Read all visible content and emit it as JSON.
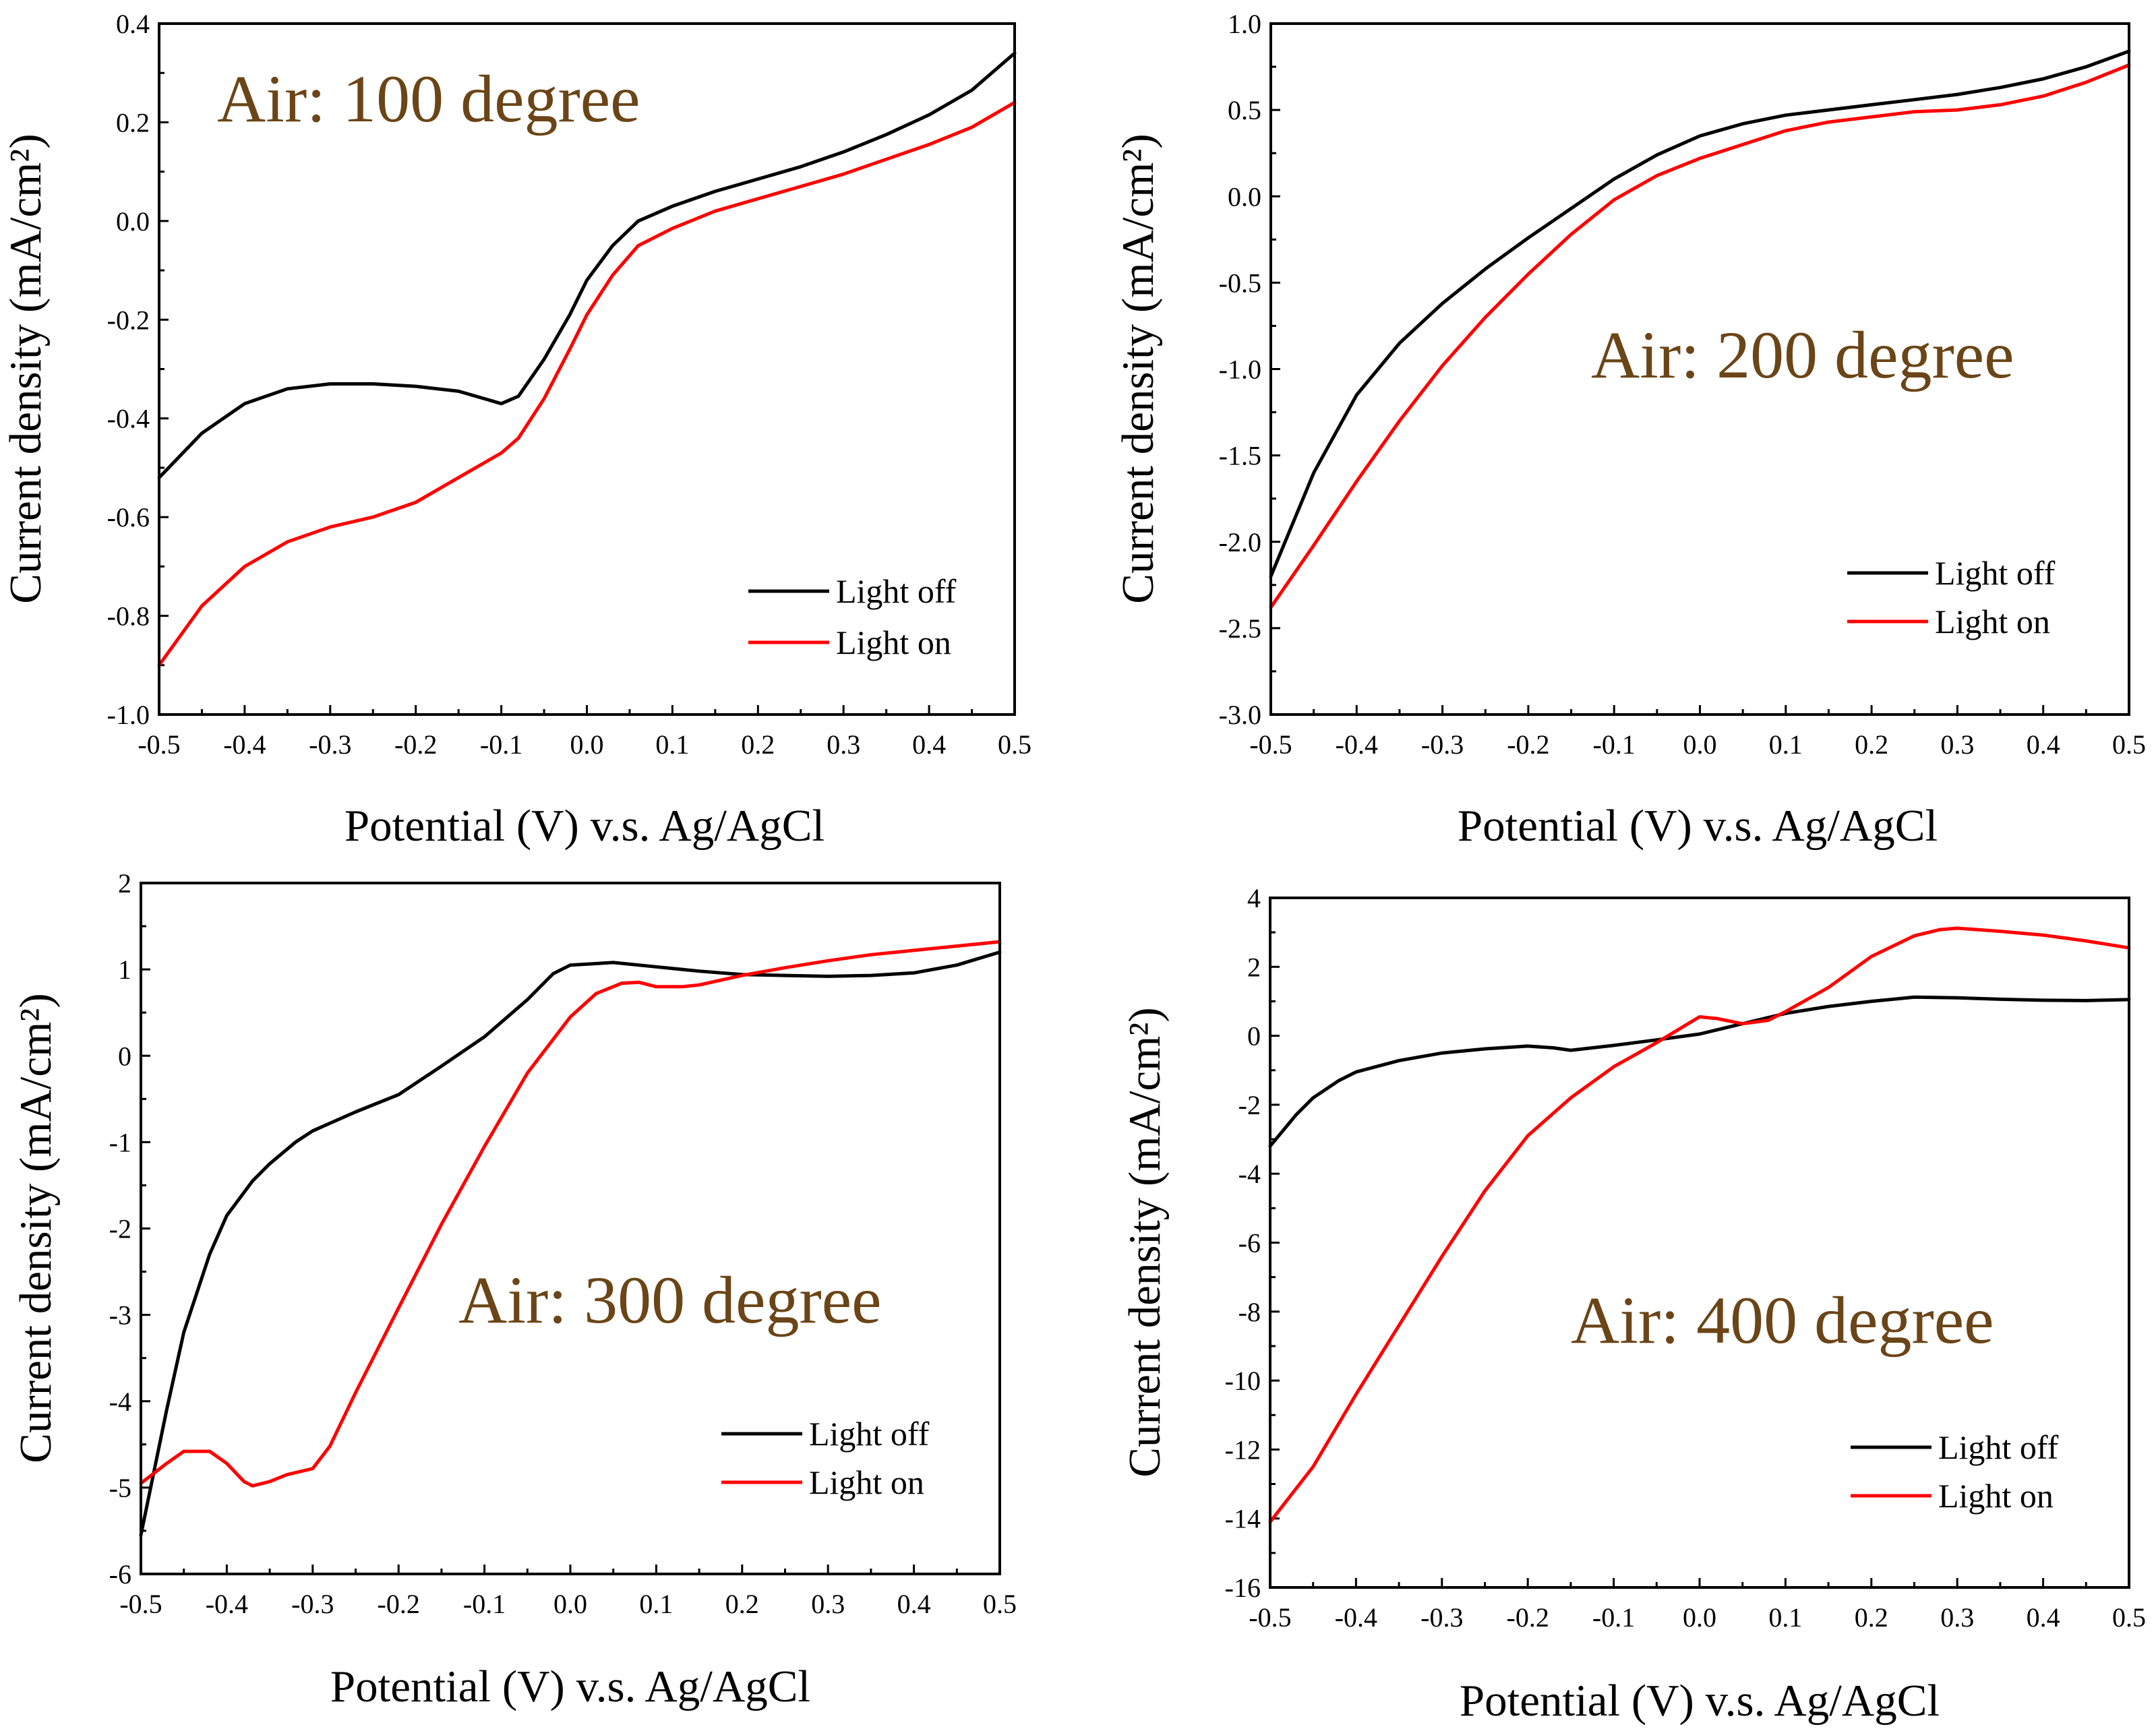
{
  "colors": {
    "light_off": "#000000",
    "light_on": "#ff0000",
    "title": "#6b4517"
  },
  "chart_data": [
    {
      "type": "line",
      "title": "Air: 100 degree",
      "xlabel": "Potential (V) v.s. Ag/AgCl",
      "ylabel": "Current density (mA/cm²)",
      "xlim": [
        -0.5,
        0.5
      ],
      "ylim": [
        -1.0,
        0.4
      ],
      "xticks": [
        -0.5,
        -0.4,
        -0.3,
        -0.2,
        -0.1,
        0.0,
        0.1,
        0.2,
        0.3,
        0.4,
        0.5
      ],
      "xtick_labels": [
        "-0.5",
        "-0.4",
        "-0.3",
        "-0.2",
        "-0.1",
        "0.0",
        "0.1",
        "0.2",
        "0.3",
        "0.4",
        "0.5"
      ],
      "yticks": [
        -1.0,
        -0.8,
        -0.6,
        -0.4,
        -0.2,
        0.0,
        0.2,
        0.4
      ],
      "ytick_labels": [
        "-1.0",
        "-0.8",
        "-0.6",
        "-0.4",
        "-0.2",
        "0.0",
        "0.2",
        "0.4"
      ],
      "legend_position": "bottom-right",
      "series": [
        {
          "name": "Light off",
          "color": "#000000",
          "x": [
            -0.5,
            -0.45,
            -0.4,
            -0.35,
            -0.3,
            -0.25,
            -0.2,
            -0.15,
            -0.12,
            -0.1,
            -0.08,
            -0.05,
            -0.02,
            0.0,
            0.03,
            0.06,
            0.1,
            0.15,
            0.2,
            0.25,
            0.3,
            0.35,
            0.4,
            0.45,
            0.5
          ],
          "y": [
            -0.52,
            -0.43,
            -0.37,
            -0.34,
            -0.33,
            -0.33,
            -0.335,
            -0.345,
            -0.36,
            -0.37,
            -0.355,
            -0.28,
            -0.19,
            -0.12,
            -0.05,
            0.0,
            0.03,
            0.06,
            0.085,
            0.11,
            0.14,
            0.175,
            0.215,
            0.265,
            0.34
          ]
        },
        {
          "name": "Light on",
          "color": "#ff0000",
          "x": [
            -0.5,
            -0.45,
            -0.4,
            -0.35,
            -0.3,
            -0.25,
            -0.2,
            -0.15,
            -0.1,
            -0.08,
            -0.05,
            -0.02,
            0.0,
            0.03,
            0.06,
            0.1,
            0.15,
            0.2,
            0.25,
            0.3,
            0.35,
            0.4,
            0.45,
            0.5
          ],
          "y": [
            -0.9,
            -0.78,
            -0.7,
            -0.65,
            -0.62,
            -0.6,
            -0.57,
            -0.52,
            -0.47,
            -0.44,
            -0.36,
            -0.26,
            -0.19,
            -0.11,
            -0.05,
            -0.015,
            0.02,
            0.045,
            0.07,
            0.095,
            0.125,
            0.155,
            0.19,
            0.24
          ]
        }
      ]
    },
    {
      "type": "line",
      "title": "Air: 200 degree",
      "xlabel": "Potential (V) v.s. Ag/AgCl",
      "ylabel": "Current density (mA/cm²)",
      "xlim": [
        -0.5,
        0.5
      ],
      "ylim": [
        -3.0,
        1.0
      ],
      "xticks": [
        -0.5,
        -0.4,
        -0.3,
        -0.2,
        -0.1,
        0.0,
        0.1,
        0.2,
        0.3,
        0.4,
        0.5
      ],
      "xtick_labels": [
        "-0.5",
        "-0.4",
        "-0.3",
        "-0.2",
        "-0.1",
        "0.0",
        "0.1",
        "0.2",
        "0.3",
        "0.4",
        "0.5"
      ],
      "yticks": [
        -3.0,
        -2.5,
        -2.0,
        -1.5,
        -1.0,
        -0.5,
        0.0,
        0.5,
        1.0
      ],
      "ytick_labels": [
        "-3.0",
        "-2.5",
        "-2.0",
        "-1.5",
        "-1.0",
        "-0.5",
        "0.0",
        "0.5",
        "1.0"
      ],
      "legend_position": "bottom-right",
      "series": [
        {
          "name": "Light off",
          "color": "#000000",
          "x": [
            -0.5,
            -0.45,
            -0.4,
            -0.35,
            -0.3,
            -0.25,
            -0.2,
            -0.15,
            -0.1,
            -0.05,
            0.0,
            0.05,
            0.1,
            0.15,
            0.2,
            0.25,
            0.3,
            0.35,
            0.4,
            0.45,
            0.5
          ],
          "y": [
            -2.2,
            -1.6,
            -1.15,
            -0.85,
            -0.62,
            -0.42,
            -0.24,
            -0.07,
            0.1,
            0.24,
            0.35,
            0.42,
            0.47,
            0.5,
            0.53,
            0.56,
            0.59,
            0.63,
            0.68,
            0.75,
            0.84
          ]
        },
        {
          "name": "Light on",
          "color": "#ff0000",
          "x": [
            -0.5,
            -0.45,
            -0.4,
            -0.35,
            -0.3,
            -0.25,
            -0.2,
            -0.15,
            -0.1,
            -0.05,
            0.0,
            0.05,
            0.1,
            0.15,
            0.2,
            0.25,
            0.3,
            0.35,
            0.4,
            0.45,
            0.5
          ],
          "y": [
            -2.38,
            -2.02,
            -1.65,
            -1.3,
            -0.98,
            -0.7,
            -0.45,
            -0.22,
            -0.02,
            0.12,
            0.22,
            0.3,
            0.38,
            0.43,
            0.46,
            0.49,
            0.5,
            0.53,
            0.58,
            0.66,
            0.76
          ]
        }
      ]
    },
    {
      "type": "line",
      "title": "Air: 300 degree",
      "xlabel": "Potential (V) v.s. Ag/AgCl",
      "ylabel": "Current density (mA/cm²)",
      "xlim": [
        -0.5,
        0.5
      ],
      "ylim": [
        -6,
        2
      ],
      "xticks": [
        -0.5,
        -0.4,
        -0.3,
        -0.2,
        -0.1,
        0.0,
        0.1,
        0.2,
        0.3,
        0.4,
        0.5
      ],
      "xtick_labels": [
        "-0.5",
        "-0.4",
        "-0.3",
        "-0.2",
        "-0.1",
        "0.0",
        "0.1",
        "0.2",
        "0.3",
        "0.4",
        "0.5"
      ],
      "yticks": [
        -6,
        -5,
        -4,
        -3,
        -2,
        -1,
        0,
        1,
        2
      ],
      "ytick_labels": [
        "-6",
        "-5",
        "-4",
        "-3",
        "-2",
        "-1",
        "0",
        "1",
        "2"
      ],
      "legend_position": "bottom-right",
      "series": [
        {
          "name": "Light off",
          "color": "#000000",
          "x": [
            -0.5,
            -0.47,
            -0.45,
            -0.42,
            -0.4,
            -0.37,
            -0.35,
            -0.32,
            -0.3,
            -0.25,
            -0.2,
            -0.15,
            -0.1,
            -0.05,
            -0.02,
            0.0,
            0.05,
            0.1,
            0.15,
            0.2,
            0.25,
            0.3,
            0.35,
            0.4,
            0.45,
            0.5
          ],
          "y": [
            -5.55,
            -4.1,
            -3.2,
            -2.3,
            -1.85,
            -1.45,
            -1.25,
            -1.0,
            -0.87,
            -0.65,
            -0.45,
            -0.12,
            0.22,
            0.65,
            0.95,
            1.05,
            1.08,
            1.03,
            0.98,
            0.94,
            0.93,
            0.92,
            0.93,
            0.96,
            1.05,
            1.2
          ]
        },
        {
          "name": "Light on",
          "color": "#ff0000",
          "x": [
            -0.5,
            -0.47,
            -0.45,
            -0.42,
            -0.4,
            -0.38,
            -0.37,
            -0.35,
            -0.33,
            -0.3,
            -0.28,
            -0.25,
            -0.2,
            -0.15,
            -0.1,
            -0.05,
            0.0,
            0.03,
            0.06,
            0.08,
            0.1,
            0.13,
            0.15,
            0.2,
            0.25,
            0.3,
            0.35,
            0.4,
            0.45,
            0.5
          ],
          "y": [
            -4.95,
            -4.72,
            -4.58,
            -4.58,
            -4.72,
            -4.93,
            -4.98,
            -4.93,
            -4.85,
            -4.78,
            -4.52,
            -3.9,
            -2.92,
            -1.95,
            -1.05,
            -0.2,
            0.45,
            0.72,
            0.84,
            0.85,
            0.8,
            0.8,
            0.82,
            0.93,
            1.02,
            1.1,
            1.17,
            1.22,
            1.27,
            1.32
          ]
        }
      ]
    },
    {
      "type": "line",
      "title": "Air: 400 degree",
      "xlabel": "Potential (V) v.s. Ag/AgCl",
      "ylabel": "Current density (mA/cm²)",
      "xlim": [
        -0.5,
        0.5
      ],
      "ylim": [
        -16,
        4
      ],
      "xticks": [
        -0.5,
        -0.4,
        -0.3,
        -0.2,
        -0.1,
        0.0,
        0.1,
        0.2,
        0.3,
        0.4,
        0.5
      ],
      "xtick_labels": [
        "-0.5",
        "-0.4",
        "-0.3",
        "-0.2",
        "-0.1",
        "0.0",
        "0.1",
        "0.2",
        "0.3",
        "0.4",
        "0.5"
      ],
      "yticks": [
        -16,
        -14,
        -12,
        -10,
        -8,
        -6,
        -4,
        -2,
        0,
        2,
        4
      ],
      "ytick_labels": [
        "-16",
        "-14",
        "-12",
        "-10",
        "-8",
        "-6",
        "-4",
        "-2",
        "0",
        "2",
        "4"
      ],
      "legend_position": "bottom-right",
      "series": [
        {
          "name": "Light off",
          "color": "#000000",
          "x": [
            -0.5,
            -0.47,
            -0.45,
            -0.42,
            -0.4,
            -0.35,
            -0.3,
            -0.25,
            -0.2,
            -0.17,
            -0.15,
            -0.1,
            -0.05,
            0.0,
            0.05,
            0.1,
            0.15,
            0.2,
            0.25,
            0.3,
            0.35,
            0.4,
            0.45,
            0.5
          ],
          "y": [
            -3.2,
            -2.3,
            -1.8,
            -1.3,
            -1.05,
            -0.72,
            -0.5,
            -0.38,
            -0.3,
            -0.35,
            -0.42,
            -0.28,
            -0.12,
            0.05,
            0.35,
            0.65,
            0.85,
            1.0,
            1.12,
            1.1,
            1.06,
            1.03,
            1.02,
            1.05
          ]
        },
        {
          "name": "Light on",
          "color": "#ff0000",
          "x": [
            -0.5,
            -0.45,
            -0.4,
            -0.35,
            -0.3,
            -0.25,
            -0.2,
            -0.15,
            -0.1,
            -0.05,
            -0.02,
            0.0,
            0.02,
            0.05,
            0.08,
            0.1,
            0.15,
            0.2,
            0.25,
            0.28,
            0.3,
            0.35,
            0.4,
            0.45,
            0.5
          ],
          "y": [
            -14.1,
            -12.5,
            -10.4,
            -8.4,
            -6.4,
            -4.5,
            -2.9,
            -1.8,
            -0.9,
            -0.2,
            0.25,
            0.55,
            0.5,
            0.35,
            0.45,
            0.7,
            1.4,
            2.3,
            2.9,
            3.08,
            3.12,
            3.03,
            2.92,
            2.75,
            2.55
          ]
        }
      ]
    }
  ]
}
